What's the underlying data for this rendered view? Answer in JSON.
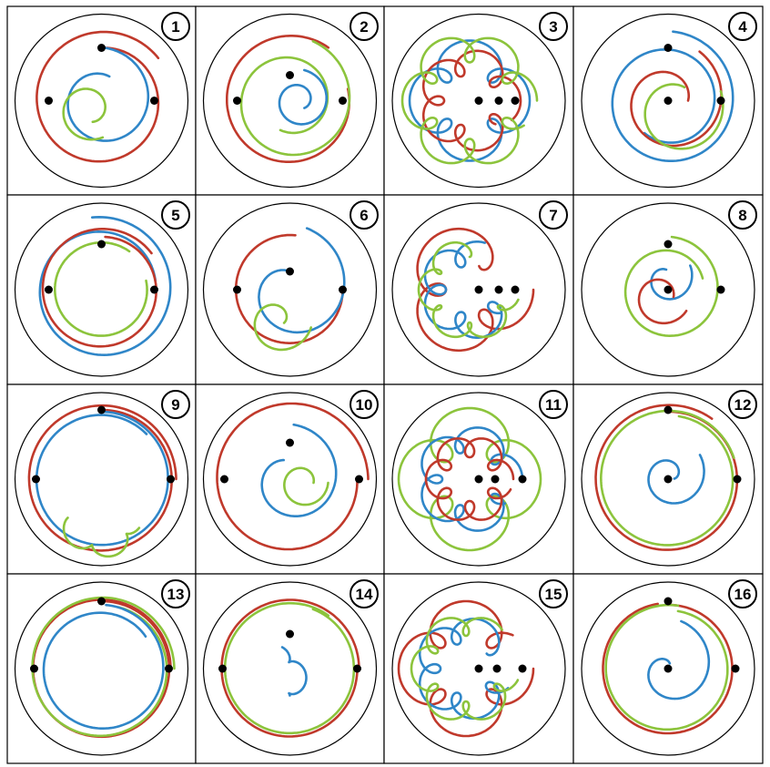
{
  "colors": {
    "red": "#c0392b",
    "blue": "#2f86c8",
    "green": "#8cc43c",
    "outline": "#000000"
  },
  "panels": [
    {
      "number": "1"
    },
    {
      "number": "2"
    },
    {
      "number": "3"
    },
    {
      "number": "4"
    },
    {
      "number": "5"
    },
    {
      "number": "6"
    },
    {
      "number": "7"
    },
    {
      "number": "8"
    },
    {
      "number": "9"
    },
    {
      "number": "10"
    },
    {
      "number": "11"
    },
    {
      "number": "12"
    },
    {
      "number": "13"
    },
    {
      "number": "14"
    },
    {
      "number": "15"
    },
    {
      "number": "16"
    }
  ]
}
